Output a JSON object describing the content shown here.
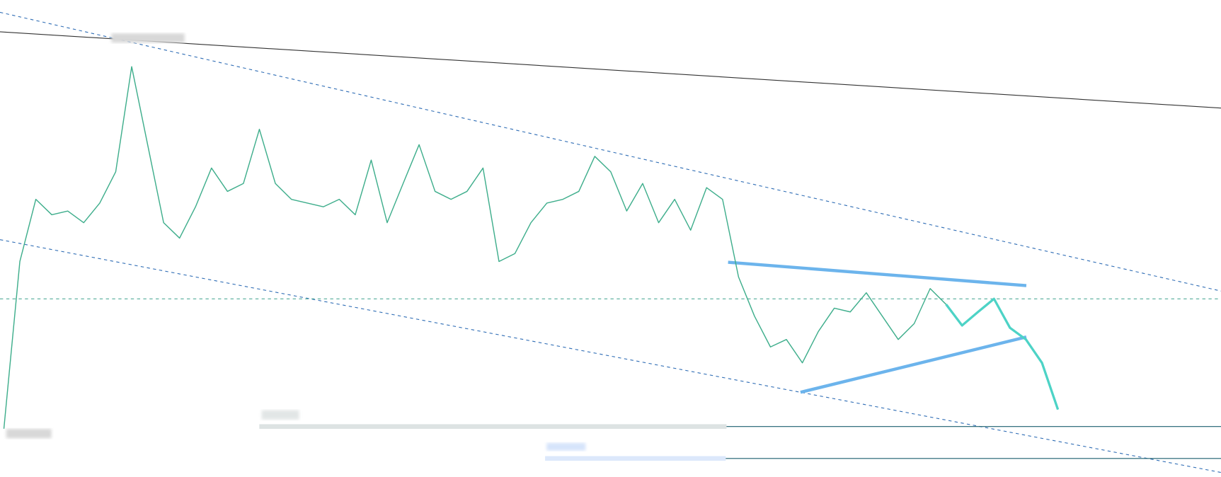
{
  "chart_data": {
    "type": "line",
    "ylim": [
      0,
      100
    ],
    "series": [
      {
        "name": null,
        "color": "#3fae8c",
        "values": [
          9.2,
          45,
          58.3,
          55,
          55.8,
          53.3,
          57.5,
          64.2,
          86.7,
          70,
          53.3,
          50,
          56.7,
          65,
          60,
          61.7,
          73.3,
          61.7,
          58.3,
          57.5,
          56.7,
          58.3,
          55,
          66.7,
          53.3,
          61.7,
          70,
          60,
          58.3,
          60,
          65,
          45,
          46.7,
          53.3,
          57.5,
          58.3,
          60,
          67.5,
          64.2,
          55.8,
          61.7,
          53.3,
          58.3,
          51.7,
          60.8,
          58.3,
          41.7,
          33.3,
          26.7,
          28.3,
          23.3,
          30,
          35,
          34.2,
          38.3,
          33.3,
          28.3,
          31.7,
          39.2,
          35.8
        ]
      },
      {
        "name": null,
        "color": "#4dd3c6",
        "values": [
          35.8,
          31.3,
          34.2,
          37,
          30.8,
          28.3,
          23.3,
          13.3
        ]
      }
    ]
  }
}
